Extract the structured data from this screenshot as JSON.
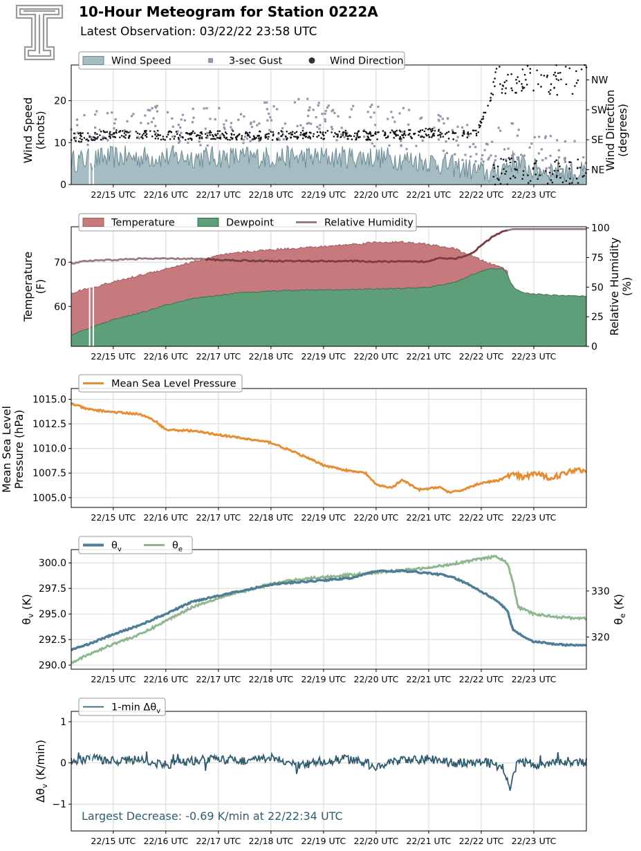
{
  "header": {
    "title": "10-Hour Meteogram for Station 0222A",
    "subtitle": "Latest Observation: 03/22/22 23:58 UTC",
    "logo_icon": "texas-tech-double-t-logo"
  },
  "time_ticks": [
    "22/15 UTC",
    "22/16 UTC",
    "22/17 UTC",
    "22/18 UTC",
    "22/19 UTC",
    "22/20 UTC",
    "22/21 UTC",
    "22/22 UTC",
    "22/23 UTC"
  ],
  "chart_data": [
    {
      "id": "wind",
      "type": "area",
      "xlabel": "",
      "ylabel": "Wind Speed\n(knots)",
      "ylabel2": "Wind Direction\n(degrees)",
      "x_range_hours": [
        14.2,
        24.0
      ],
      "ylim": [
        0,
        28.5
      ],
      "yticks": [
        0,
        10,
        20
      ],
      "y2lim": [
        0,
        360
      ],
      "y2ticks": [
        {
          "value": 45,
          "label": "NE"
        },
        {
          "value": 135,
          "label": "SE"
        },
        {
          "value": 225,
          "label": "SW"
        },
        {
          "value": 315,
          "label": "NW"
        }
      ],
      "legend": [
        "Wind Speed",
        "3-sec Gust",
        "Wind Direction"
      ],
      "legend_position": "top-left",
      "colors": {
        "speed_fill": "#a4bcc2",
        "speed_line": "#6c8a92",
        "gust": "#9b93ad",
        "direction": "#111111"
      },
      "series": [
        {
          "name": "Wind Speed",
          "x": [
            14.2,
            15.0,
            16.0,
            17.0,
            18.0,
            19.0,
            20.0,
            21.0,
            21.8,
            22.2,
            22.6,
            23.0,
            23.5,
            24.0
          ],
          "values": [
            5,
            6,
            6,
            6,
            6,
            6,
            6,
            5,
            3,
            2,
            5,
            3,
            3,
            2
          ]
        },
        {
          "name": "3-sec Gust",
          "x": [
            14.2,
            15.0,
            16.0,
            17.0,
            18.0,
            19.0,
            20.0,
            21.0,
            21.8,
            22.2,
            22.6,
            23.0,
            23.5,
            24.0
          ],
          "values": [
            11,
            14,
            14,
            14,
            15,
            16,
            14,
            13,
            9,
            8,
            10,
            7,
            7,
            6
          ]
        },
        {
          "name": "Wind Direction",
          "x": [
            14.2,
            15.0,
            16.0,
            17.0,
            18.0,
            19.0,
            20.0,
            21.0,
            21.5,
            21.9,
            22.3,
            22.7,
            23.0,
            23.5,
            24.0
          ],
          "values": [
            140,
            150,
            148,
            148,
            148,
            150,
            148,
            155,
            150,
            155,
            300,
            60,
            300,
            310,
            90
          ]
        }
      ]
    },
    {
      "id": "temperature",
      "type": "area",
      "ylabel": "Temperature\n(F)",
      "ylabel2": "Relative Humidity\n(%)",
      "x_range_hours": [
        14.2,
        24.0
      ],
      "ylim": [
        51,
        78
      ],
      "yticks": [
        60,
        70
      ],
      "y2lim": [
        0,
        101
      ],
      "y2ticks": [
        0,
        25,
        50,
        75,
        100
      ],
      "legend": [
        "Temperature",
        "Dewpoint",
        "Relative Humidity"
      ],
      "legend_position": "top-left",
      "colors": {
        "temperature": "#c77a7e",
        "dewpoint": "#5e9e78",
        "rh": "#9a7c7e"
      },
      "series": [
        {
          "name": "Temperature",
          "x": [
            14.2,
            14.5,
            15.0,
            15.5,
            16.0,
            16.5,
            17.0,
            17.5,
            18.0,
            18.5,
            19.0,
            19.5,
            20.0,
            20.5,
            21.0,
            21.5,
            21.8,
            22.0,
            22.2,
            22.4,
            22.5
          ],
          "values": [
            63,
            64,
            65.5,
            67,
            68.5,
            70,
            71.5,
            72.3,
            72.8,
            73.2,
            73.5,
            74,
            74.5,
            74.5,
            74,
            73,
            71.5,
            70.5,
            69.5,
            68.8,
            68
          ]
        },
        {
          "name": "Dewpoint",
          "x": [
            14.2,
            14.5,
            15.0,
            15.5,
            16.0,
            16.5,
            17.0,
            17.5,
            18.0,
            18.5,
            19.0,
            19.5,
            20.0,
            20.5,
            21.0,
            21.5,
            21.8,
            22.0,
            22.2,
            22.4,
            22.5,
            22.55,
            22.65,
            22.8,
            23.0,
            23.5,
            24.0
          ],
          "values": [
            53.5,
            55,
            57,
            58.5,
            60.3,
            61.7,
            62.5,
            63.2,
            63.5,
            63.7,
            63.8,
            63.8,
            64,
            64.1,
            64.3,
            65.5,
            67,
            68,
            68.5,
            68.5,
            67.5,
            65.5,
            63.8,
            63.2,
            62.8,
            62.5,
            62.3
          ]
        },
        {
          "name": "Relative Humidity",
          "x": [
            14.2,
            14.5,
            15.0,
            15.5,
            16.0,
            16.5,
            17.0,
            17.5,
            18.0,
            18.5,
            19.0,
            19.5,
            20.0,
            20.5,
            21.0,
            21.2,
            21.5,
            21.8,
            22.0,
            22.2,
            22.4,
            22.6,
            23.0,
            23.5,
            24.0
          ],
          "values": [
            70,
            72,
            73,
            74,
            74,
            74,
            73,
            72.5,
            72,
            72,
            72,
            72,
            71.5,
            71.5,
            71.5,
            75,
            74,
            78,
            85,
            92,
            97,
            99,
            99,
            99,
            99
          ]
        }
      ]
    },
    {
      "id": "pressure",
      "type": "line",
      "ylabel": "Mean Sea Level\nPressure (hPa)",
      "x_range_hours": [
        14.2,
        24.0
      ],
      "ylim": [
        1004,
        1016.1
      ],
      "yticks": [
        "1005.0",
        "1007.5",
        "1010.0",
        "1012.5",
        "1015.0"
      ],
      "legend": [
        "Mean Sea Level Pressure"
      ],
      "legend_position": "top-left",
      "colors": {
        "line": "#e58e35"
      },
      "series": [
        {
          "name": "Mean Sea Level Pressure",
          "x": [
            14.2,
            14.5,
            15.0,
            15.5,
            15.8,
            16.0,
            16.5,
            17.0,
            17.5,
            18.0,
            18.5,
            19.0,
            19.5,
            19.8,
            20.0,
            20.3,
            20.5,
            20.8,
            21.0,
            21.2,
            21.4,
            21.6,
            21.8,
            22.0,
            22.3,
            22.6,
            22.8,
            23.0,
            23.3,
            23.5,
            23.8,
            24.0
          ],
          "values": [
            1014.6,
            1014,
            1013.7,
            1013.5,
            1012.8,
            1011.9,
            1011.8,
            1011.4,
            1011,
            1010.6,
            1009.5,
            1008.3,
            1007.7,
            1007.5,
            1006.3,
            1006,
            1006.8,
            1005.8,
            1005.9,
            1006.1,
            1005.5,
            1005.7,
            1006.1,
            1006.5,
            1006.7,
            1007.4,
            1007,
            1007.5,
            1007,
            1007.3,
            1007.9,
            1007.7
          ]
        }
      ]
    },
    {
      "id": "theta",
      "type": "line",
      "ylabel": "θv (K)",
      "ylabel2": "θe (K)",
      "x_range_hours": [
        14.2,
        24.0
      ],
      "ylim": [
        289.6,
        301.3
      ],
      "yticks": [
        "290.0",
        "292.5",
        "295.0",
        "297.5",
        "300.0"
      ],
      "y2lim": [
        313,
        339
      ],
      "y2ticks": [
        320,
        330
      ],
      "legend": [
        "θv",
        "θe"
      ],
      "legend_position": "top-left",
      "colors": {
        "theta_v": "#4e7e96",
        "theta_e": "#8fb78d"
      },
      "series": [
        {
          "name": "θv",
          "x": [
            14.2,
            14.5,
            15.0,
            15.5,
            16.0,
            16.5,
            17.0,
            17.5,
            18.0,
            18.5,
            19.0,
            19.5,
            20.0,
            20.5,
            21.0,
            21.3,
            21.5,
            21.8,
            22.0,
            22.3,
            22.5,
            22.6,
            22.8,
            23.0,
            23.5,
            24.0
          ],
          "values": [
            291.5,
            292,
            293,
            293.9,
            295,
            296.2,
            296.8,
            297.3,
            297.9,
            298.1,
            298.3,
            298.5,
            299.2,
            299.2,
            299,
            298.8,
            298.5,
            297.8,
            297.2,
            296.3,
            295.3,
            293.5,
            292.8,
            292.3,
            292,
            291.9
          ]
        },
        {
          "name": "θe",
          "x": [
            14.2,
            14.5,
            15.0,
            15.5,
            16.0,
            16.5,
            17.0,
            17.5,
            18.0,
            18.5,
            19.0,
            19.5,
            20.0,
            20.5,
            21.0,
            21.5,
            22.0,
            22.3,
            22.5,
            22.6,
            22.7,
            22.9,
            23.0,
            23.5,
            24.0
          ],
          "values": [
            314.5,
            316,
            318.5,
            320.5,
            323.5,
            326.5,
            328.5,
            330,
            331.5,
            332.5,
            333,
            333.5,
            334,
            334.5,
            335,
            336,
            337,
            337.5,
            336,
            332,
            326.5,
            325.5,
            325,
            324.3,
            324
          ]
        }
      ]
    },
    {
      "id": "dtheta",
      "type": "line",
      "ylabel": "Δθv (K/min)",
      "x_range_hours": [
        14.2,
        24.0
      ],
      "ylim": [
        -1.65,
        1.25
      ],
      "yticks": [
        "−1",
        "0",
        "1"
      ],
      "legend": [
        "1-min Δθv"
      ],
      "legend_position": "top-left",
      "colors": {
        "line": "#2f5c6e"
      },
      "annotation": "Largest Decrease: -0.69 K/min at 22/22:34 UTC",
      "series": [
        {
          "name": "1-min Δθv",
          "x": [
            14.2,
            14.6,
            15.0,
            15.5,
            16.0,
            16.5,
            17.0,
            17.5,
            18.0,
            18.5,
            19.0,
            19.5,
            20.0,
            20.5,
            21.0,
            21.5,
            22.0,
            22.4,
            22.5,
            22.55,
            22.6,
            22.7,
            23.0,
            23.5,
            24.0
          ],
          "values": [
            0.05,
            0.1,
            0.05,
            0.08,
            -0.05,
            0.05,
            0.1,
            0.05,
            0.12,
            -0.08,
            0.05,
            0.1,
            -0.08,
            0.05,
            0.1,
            0.0,
            0.05,
            -0.1,
            -0.35,
            -0.69,
            -0.3,
            0.05,
            -0.05,
            0.05,
            0.02
          ]
        }
      ]
    }
  ]
}
